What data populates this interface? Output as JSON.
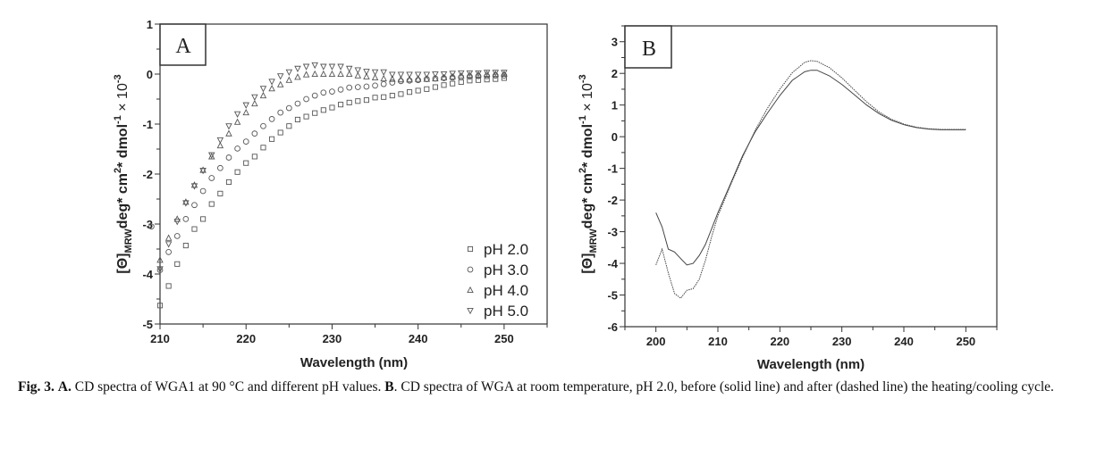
{
  "colors": {
    "axis": "#333333",
    "marker": "#555555",
    "line": "#444444"
  },
  "chart_data": [
    {
      "panel_label": "A",
      "type": "scatter",
      "xlabel": "Wavelength (nm)",
      "ylabel": {
        "theta": "[Θ]",
        "sub": "MRW",
        "p1": "deg* cm",
        "sup1": "2",
        "p2": "* dmol",
        "sup2": "-1",
        "p3": " × 10",
        "sup3": "-3"
      },
      "xlim": [
        210,
        255
      ],
      "ylim": [
        -5,
        1
      ],
      "xticks": [
        210,
        220,
        230,
        240,
        250
      ],
      "yticks": [
        -5,
        -4,
        -3,
        -2,
        -1,
        0,
        1
      ],
      "grid": false,
      "legend_position": "bottom-right",
      "series": [
        {
          "name": "pH 2.0",
          "marker": "square",
          "x": [
            210,
            211,
            212,
            213,
            214,
            215,
            216,
            217,
            218,
            219,
            220,
            221,
            222,
            223,
            224,
            225,
            226,
            227,
            228,
            229,
            230,
            231,
            232,
            233,
            234,
            235,
            236,
            237,
            238,
            239,
            240,
            241,
            242,
            243,
            244,
            245,
            246,
            247,
            248,
            249,
            250
          ],
          "y": [
            -4.63,
            -4.24,
            -3.8,
            -3.43,
            -3.1,
            -2.9,
            -2.6,
            -2.39,
            -2.16,
            -1.96,
            -1.78,
            -1.65,
            -1.47,
            -1.3,
            -1.17,
            -1.04,
            -0.91,
            -0.85,
            -0.78,
            -0.72,
            -0.67,
            -0.61,
            -0.57,
            -0.54,
            -0.52,
            -0.47,
            -0.46,
            -0.43,
            -0.4,
            -0.36,
            -0.33,
            -0.3,
            -0.26,
            -0.22,
            -0.19,
            -0.16,
            -0.13,
            -0.12,
            -0.11,
            -0.1,
            -0.08
          ]
        },
        {
          "name": "pH 3.0",
          "marker": "circle",
          "x": [
            209,
            210,
            211,
            212,
            213,
            214,
            215,
            216,
            217,
            218,
            219,
            220,
            221,
            222,
            223,
            224,
            225,
            226,
            227,
            228,
            229,
            230,
            231,
            232,
            233,
            234,
            235,
            236,
            237,
            238,
            239,
            240,
            241,
            242,
            243,
            244,
            245,
            246,
            247,
            248,
            249,
            250
          ],
          "y": [
            -3.05,
            -3.92,
            -3.56,
            -3.24,
            -2.9,
            -2.62,
            -2.34,
            -2.08,
            -1.88,
            -1.67,
            -1.49,
            -1.35,
            -1.19,
            -1.04,
            -0.9,
            -0.77,
            -0.68,
            -0.59,
            -0.5,
            -0.43,
            -0.37,
            -0.35,
            -0.31,
            -0.27,
            -0.26,
            -0.25,
            -0.23,
            -0.2,
            -0.17,
            -0.14,
            -0.13,
            -0.12,
            -0.1,
            -0.09,
            -0.08,
            -0.07,
            -0.06,
            -0.05,
            -0.04,
            -0.04,
            -0.03,
            -0.03
          ]
        },
        {
          "name": "pH 4.0",
          "marker": "triangle-up",
          "x": [
            210,
            211,
            212,
            213,
            214,
            215,
            216,
            217,
            218,
            219,
            220,
            221,
            222,
            223,
            224,
            225,
            226,
            227,
            228,
            229,
            230,
            231,
            232,
            233,
            234,
            235,
            236,
            237,
            238,
            239,
            240,
            241,
            242,
            243,
            244,
            245,
            246,
            247,
            248,
            249,
            250
          ],
          "y": [
            -3.72,
            -3.28,
            -2.9,
            -2.56,
            -2.22,
            -1.92,
            -1.65,
            -1.43,
            -1.19,
            -0.96,
            -0.77,
            -0.59,
            -0.43,
            -0.29,
            -0.21,
            -0.12,
            -0.06,
            -0.01,
            0,
            0,
            0,
            0,
            0,
            -0.03,
            -0.05,
            -0.07,
            -0.09,
            -0.1,
            -0.11,
            -0.11,
            -0.1,
            -0.1,
            -0.09,
            -0.07,
            -0.05,
            -0.03,
            -0.02,
            -0.01,
            0,
            0,
            0
          ]
        },
        {
          "name": "pH 5.0",
          "marker": "triangle-down",
          "x": [
            210,
            211,
            212,
            213,
            214,
            215,
            216,
            217,
            218,
            219,
            220,
            221,
            222,
            223,
            224,
            225,
            226,
            227,
            228,
            229,
            230,
            231,
            232,
            233,
            234,
            235,
            236,
            237,
            238,
            239,
            240,
            241,
            242,
            243,
            244,
            245,
            246,
            247,
            248,
            249,
            250
          ],
          "y": [
            -3.9,
            -3.4,
            -2.95,
            -2.58,
            -2.24,
            -1.93,
            -1.62,
            -1.32,
            -1.04,
            -0.8,
            -0.62,
            -0.46,
            -0.29,
            -0.15,
            -0.04,
            0.04,
            0.11,
            0.15,
            0.18,
            0.15,
            0.15,
            0.15,
            0.11,
            0.08,
            0.05,
            0.04,
            0.04,
            -0.01,
            -0.01,
            -0.01,
            -0.01,
            -0.01,
            0,
            0,
            0.01,
            0.02,
            0.02,
            0.02,
            0.03,
            0.03,
            0.03
          ]
        }
      ]
    },
    {
      "panel_label": "B",
      "type": "line",
      "xlabel": "Wavelength (nm)",
      "ylabel": {
        "theta": "[Θ]",
        "sub": "MRW",
        "p1": "deg* cm",
        "sup1": "2",
        "p2": "* dmol",
        "sup2": "-1",
        "p3": " × 10",
        "sup3": "-3"
      },
      "xlim": [
        195,
        255
      ],
      "ylim": [
        -6,
        3.5
      ],
      "xticks": [
        200,
        210,
        220,
        230,
        240,
        250
      ],
      "yticks": [
        -6,
        -5,
        -4,
        -3,
        -2,
        -1,
        0,
        1,
        2,
        3
      ],
      "grid": false,
      "series": [
        {
          "style": "solid",
          "x": [
            200,
            201,
            202,
            203,
            204,
            205,
            206,
            207,
            208,
            209,
            210,
            212,
            214,
            216,
            218,
            220,
            222,
            224,
            225,
            226,
            228,
            230,
            232,
            234,
            236,
            238,
            240,
            242,
            244,
            246,
            248,
            250
          ],
          "y": [
            -2.4,
            -2.85,
            -3.55,
            -3.64,
            -3.85,
            -4.05,
            -4.0,
            -3.75,
            -3.4,
            -2.9,
            -2.4,
            -1.5,
            -0.6,
            0.15,
            0.75,
            1.3,
            1.78,
            2.05,
            2.1,
            2.1,
            1.92,
            1.65,
            1.33,
            1.0,
            0.73,
            0.52,
            0.38,
            0.29,
            0.24,
            0.22,
            0.22,
            0.22
          ]
        },
        {
          "style": "dashed",
          "x": [
            200,
            201,
            202,
            203,
            204,
            205,
            206,
            207,
            208,
            209,
            210,
            212,
            214,
            216,
            218,
            220,
            222,
            224,
            225,
            226,
            228,
            230,
            232,
            234,
            236,
            238,
            240,
            242,
            244,
            246,
            248,
            250
          ],
          "y": [
            -4.05,
            -3.55,
            -4.3,
            -4.95,
            -5.1,
            -4.85,
            -4.8,
            -4.5,
            -3.9,
            -3.15,
            -2.5,
            -1.55,
            -0.65,
            0.2,
            0.9,
            1.5,
            2.02,
            2.35,
            2.4,
            2.38,
            2.18,
            1.86,
            1.48,
            1.1,
            0.78,
            0.55,
            0.4,
            0.3,
            0.25,
            0.23,
            0.23,
            0.23
          ]
        }
      ]
    }
  ],
  "caption": {
    "fig": "Fig. 3.",
    "a_label": "A.",
    "a_text": " CD spectra of WGA1 at 90 °C and different pH values. ",
    "b_label": "B",
    "b_text": ". CD spectra of WGA at room temperature, pH 2.0, before (solid line) and after (dashed line) the heating/cooling cycle."
  }
}
